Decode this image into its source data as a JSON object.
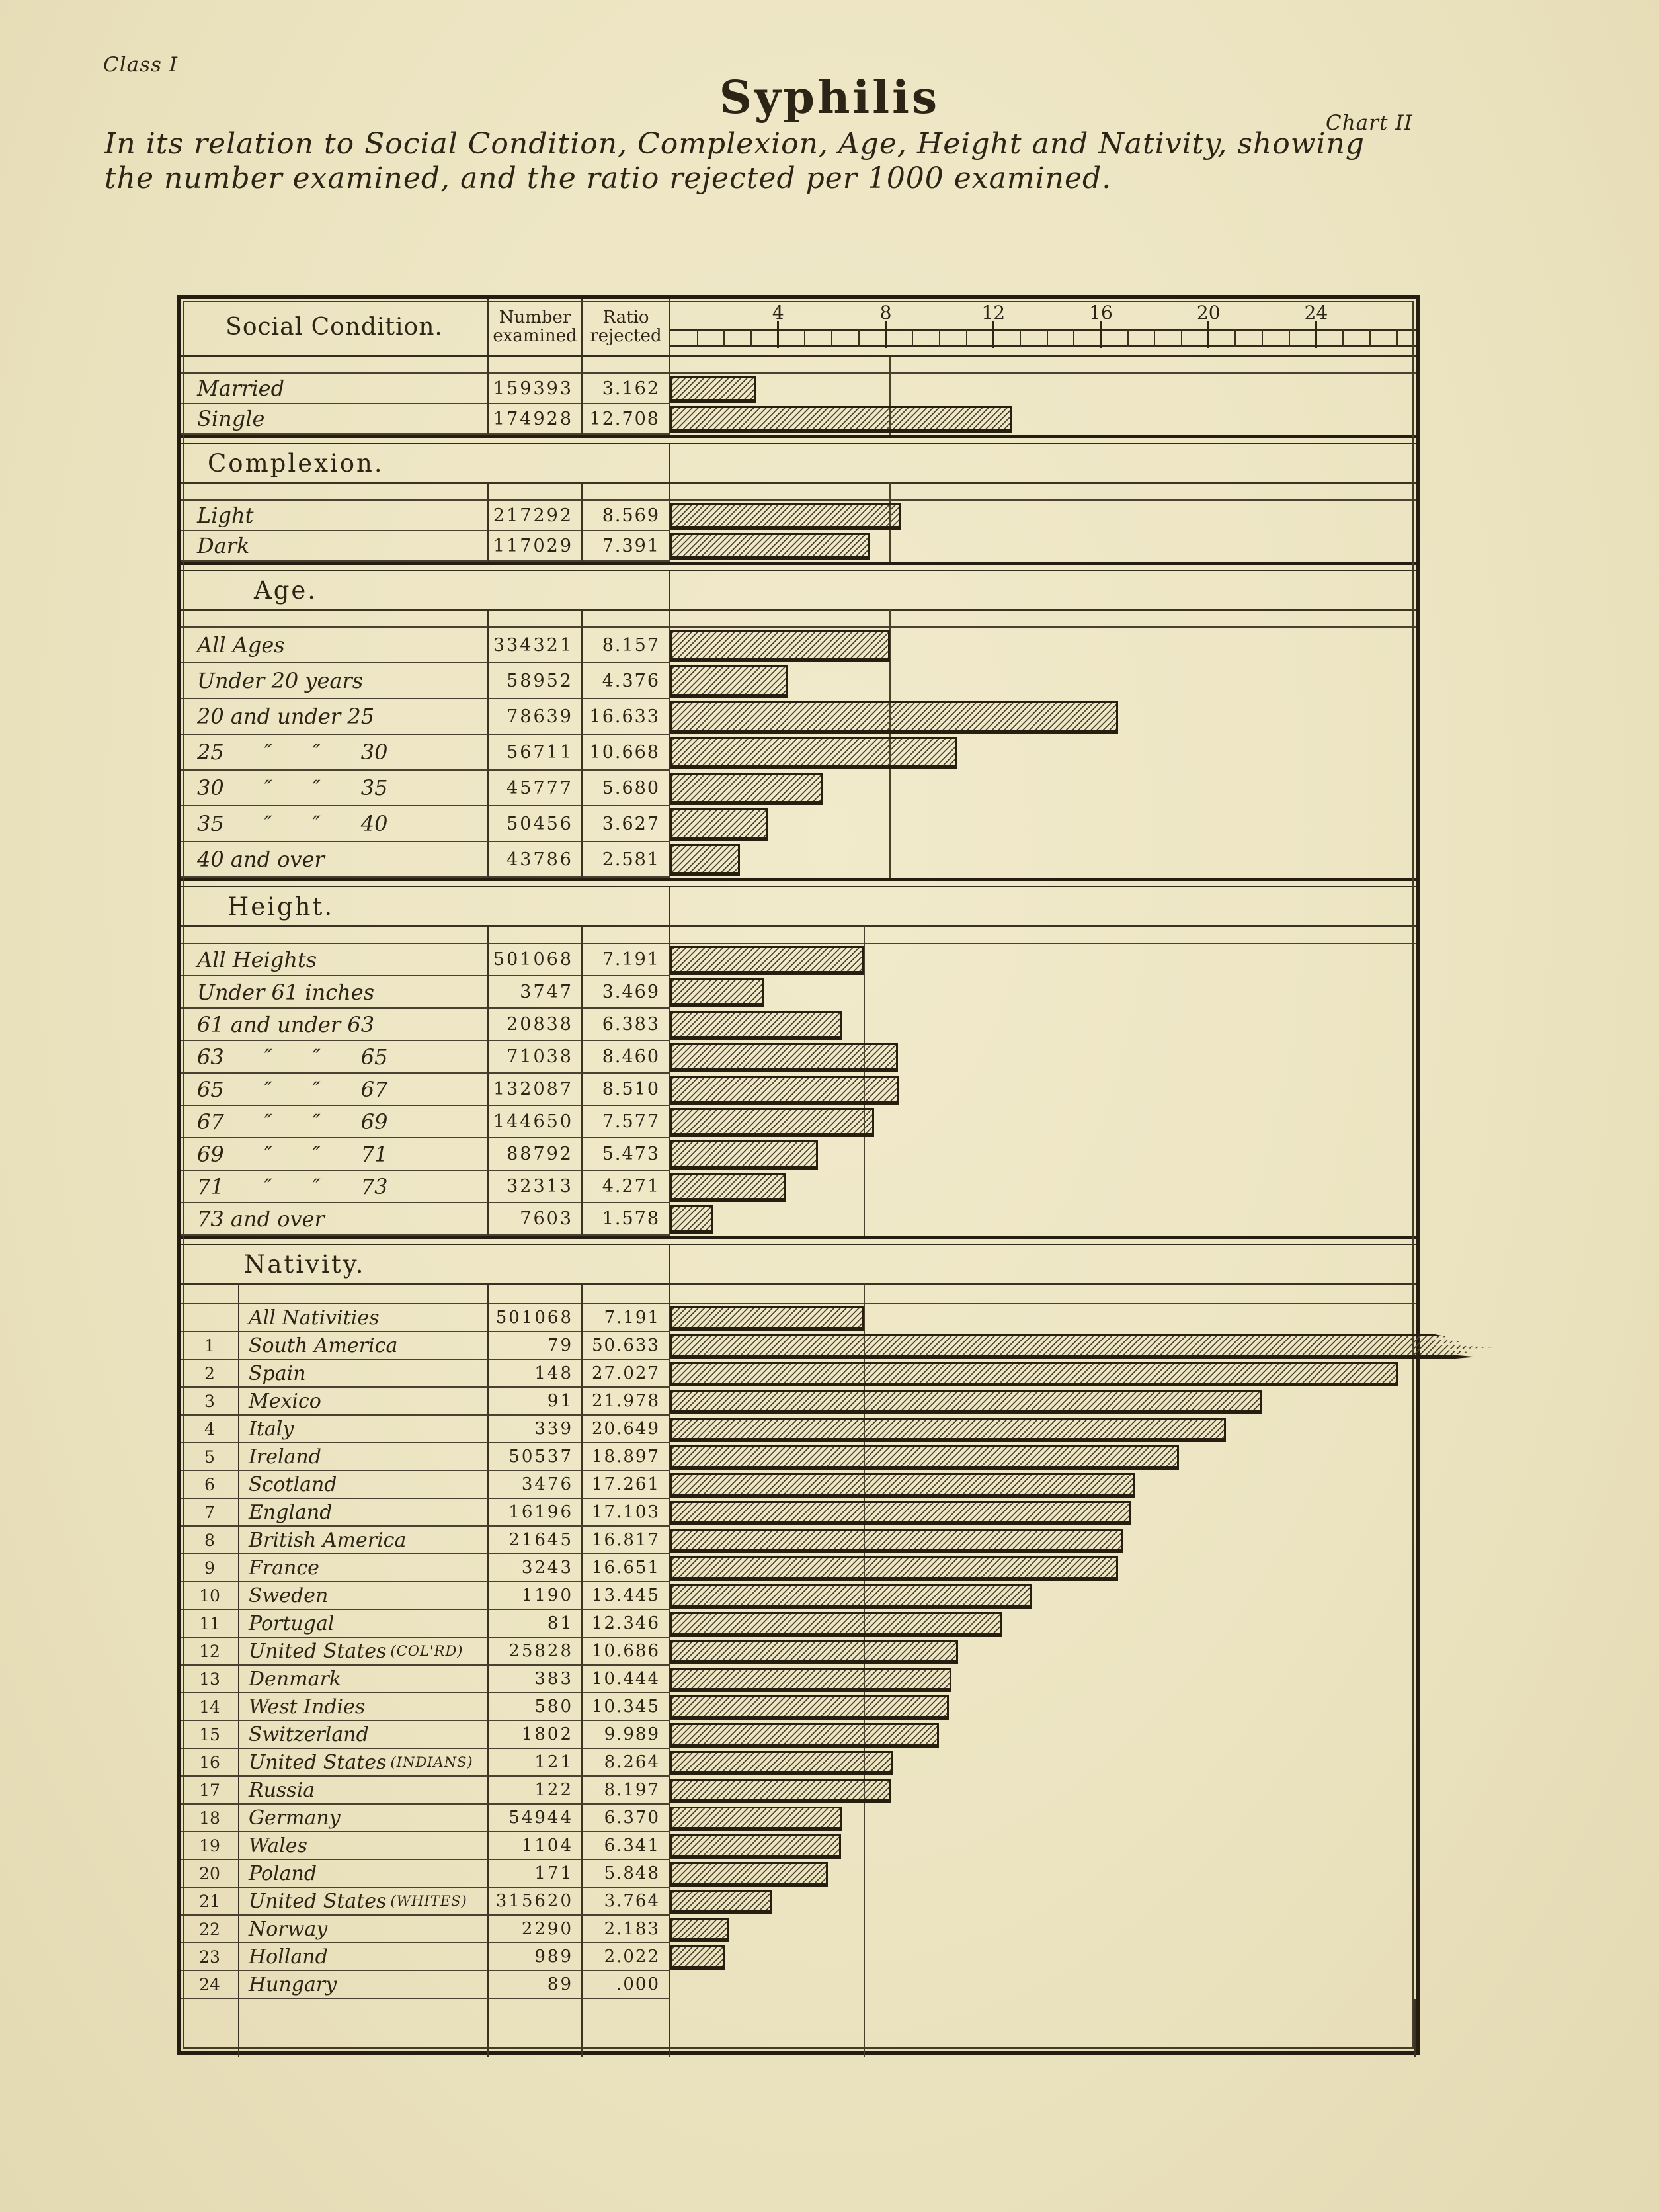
{
  "page": {
    "class_label": "Class I",
    "chart_label": "Chart II",
    "title": "Syphilis",
    "subtitle_line1": "In its relation to Social Condition, Complexion, Age, Height and Nativity, showing",
    "subtitle_line2": "the number examined, and the ratio rejected per 1000 examined.",
    "paper_color": "#ece4c1",
    "ink_color": "#2c2415"
  },
  "header": {
    "social_condition": "Social Condition.",
    "number_line1": "Number",
    "number_line2": "examined",
    "ratio_line1": "Ratio",
    "ratio_line2": "rejected"
  },
  "axis": {
    "tick_labels": [
      4,
      8,
      12,
      16,
      20,
      24
    ],
    "minor_step": 1,
    "max": 27.65
  },
  "chart_data": {
    "type": "bar",
    "title": "Syphilis",
    "value_label": "ratio rejected per 1000 examined",
    "xlim": [
      0,
      27.65
    ],
    "grid": false,
    "sections": [
      {
        "name": "Social Condition.",
        "title_band": false,
        "reference_line": 8.157,
        "rows": [
          {
            "label": "Married",
            "examined": "159393",
            "ratio": "3.162",
            "value": 3.162
          },
          {
            "label": "Single",
            "examined": "174928",
            "ratio": "12.708",
            "value": 12.708
          }
        ]
      },
      {
        "name": "Complexion.",
        "title_band": true,
        "reference_line": 8.157,
        "rows": [
          {
            "label": "Light",
            "examined": "217292",
            "ratio": "8.569",
            "value": 8.569
          },
          {
            "label": "Dark",
            "examined": "117029",
            "ratio": "7.391",
            "value": 7.391
          }
        ]
      },
      {
        "name": "Age.",
        "title_band": true,
        "reference_line": 8.157,
        "rows": [
          {
            "label": "All Ages",
            "examined": "334321",
            "ratio": "8.157",
            "value": 8.157
          },
          {
            "label": "Under 20 years",
            "examined": "58952",
            "ratio": "4.376",
            "value": 4.376
          },
          {
            "label": "20 and under 25",
            "examined": "78639",
            "ratio": "16.633",
            "value": 16.633
          },
          {
            "label": "25      ″      ″      30",
            "examined": "56711",
            "ratio": "10.668",
            "value": 10.668
          },
          {
            "label": "30      ″      ″      35",
            "examined": "45777",
            "ratio": "5.680",
            "value": 5.68
          },
          {
            "label": "35      ″      ″      40",
            "examined": "50456",
            "ratio": "3.627",
            "value": 3.627
          },
          {
            "label": "40 and over",
            "examined": "43786",
            "ratio": "2.581",
            "value": 2.581
          }
        ]
      },
      {
        "name": "Height.",
        "title_band": true,
        "reference_line": 7.191,
        "rows": [
          {
            "label": "All Heights",
            "examined": "501068",
            "ratio": "7.191",
            "value": 7.191
          },
          {
            "label": "Under 61 inches",
            "examined": "3747",
            "ratio": "3.469",
            "value": 3.469
          },
          {
            "label": "61 and under 63",
            "examined": "20838",
            "ratio": "6.383",
            "value": 6.383
          },
          {
            "label": "63      ″      ″      65",
            "examined": "71038",
            "ratio": "8.460",
            "value": 8.46
          },
          {
            "label": "65      ″      ″      67",
            "examined": "132087",
            "ratio": "8.510",
            "value": 8.51
          },
          {
            "label": "67      ″      ″      69",
            "examined": "144650",
            "ratio": "7.577",
            "value": 7.577
          },
          {
            "label": "69      ″      ″      71",
            "examined": "88792",
            "ratio": "5.473",
            "value": 5.473
          },
          {
            "label": "71      ″      ″      73",
            "examined": "32313",
            "ratio": "4.271",
            "value": 4.271
          },
          {
            "label": "73 and over",
            "examined": "7603",
            "ratio": "1.578",
            "value": 1.578
          }
        ]
      },
      {
        "name": "Nativity.",
        "title_band": true,
        "reference_line": 7.191,
        "trailing_space": true,
        "rows": [
          {
            "rank": "",
            "label": "All Nativities",
            "examined": "501068",
            "ratio": "7.191",
            "value": 7.191
          },
          {
            "rank": "1",
            "label": "South America",
            "examined": "79",
            "ratio": "50.633",
            "value": 50.633,
            "broken": true
          },
          {
            "rank": "2",
            "label": "Spain",
            "examined": "148",
            "ratio": "27.027",
            "value": 27.027
          },
          {
            "rank": "3",
            "label": "Mexico",
            "examined": "91",
            "ratio": "21.978",
            "value": 21.978
          },
          {
            "rank": "4",
            "label": "Italy",
            "examined": "339",
            "ratio": "20.649",
            "value": 20.649
          },
          {
            "rank": "5",
            "label": "Ireland",
            "examined": "50537",
            "ratio": "18.897",
            "value": 18.897
          },
          {
            "rank": "6",
            "label": "Scotland",
            "examined": "3476",
            "ratio": "17.261",
            "value": 17.261
          },
          {
            "rank": "7",
            "label": "England",
            "examined": "16196",
            "ratio": "17.103",
            "value": 17.103
          },
          {
            "rank": "8",
            "label": "British America",
            "examined": "21645",
            "ratio": "16.817",
            "value": 16.817
          },
          {
            "rank": "9",
            "label": "France",
            "examined": "3243",
            "ratio": "16.651",
            "value": 16.651
          },
          {
            "rank": "10",
            "label": "Sweden",
            "examined": "1190",
            "ratio": "13.445",
            "value": 13.445
          },
          {
            "rank": "11",
            "label": "Portugal",
            "examined": "81",
            "ratio": "12.346",
            "value": 12.346
          },
          {
            "rank": "12",
            "label": "United States",
            "label_small": "(COL'RD)",
            "examined": "25828",
            "ratio": "10.686",
            "value": 10.686
          },
          {
            "rank": "13",
            "label": "Denmark",
            "examined": "383",
            "ratio": "10.444",
            "value": 10.444
          },
          {
            "rank": "14",
            "label": "West Indies",
            "examined": "580",
            "ratio": "10.345",
            "value": 10.345
          },
          {
            "rank": "15",
            "label": "Switzerland",
            "examined": "1802",
            "ratio": "9.989",
            "value": 9.989
          },
          {
            "rank": "16",
            "label": "United States",
            "label_small": "(INDIANS)",
            "examined": "121",
            "ratio": "8.264",
            "value": 8.264
          },
          {
            "rank": "17",
            "label": "Russia",
            "examined": "122",
            "ratio": "8.197",
            "value": 8.197
          },
          {
            "rank": "18",
            "label": "Germany",
            "examined": "54944",
            "ratio": "6.370",
            "value": 6.37
          },
          {
            "rank": "19",
            "label": "Wales",
            "examined": "1104",
            "ratio": "6.341",
            "value": 6.341
          },
          {
            "rank": "20",
            "label": "Poland",
            "examined": "171",
            "ratio": "5.848",
            "value": 5.848
          },
          {
            "rank": "21",
            "label": "United States",
            "label_small": "(WHITES)",
            "examined": "315620",
            "ratio": "3.764",
            "value": 3.764
          },
          {
            "rank": "22",
            "label": "Norway",
            "examined": "2290",
            "ratio": "2.183",
            "value": 2.183
          },
          {
            "rank": "23",
            "label": "Holland",
            "examined": "989",
            "ratio": "2.022",
            "value": 2.022
          },
          {
            "rank": "24",
            "label": "Hungary",
            "examined": "89",
            "ratio": ".000",
            "value": 0
          }
        ]
      }
    ]
  }
}
